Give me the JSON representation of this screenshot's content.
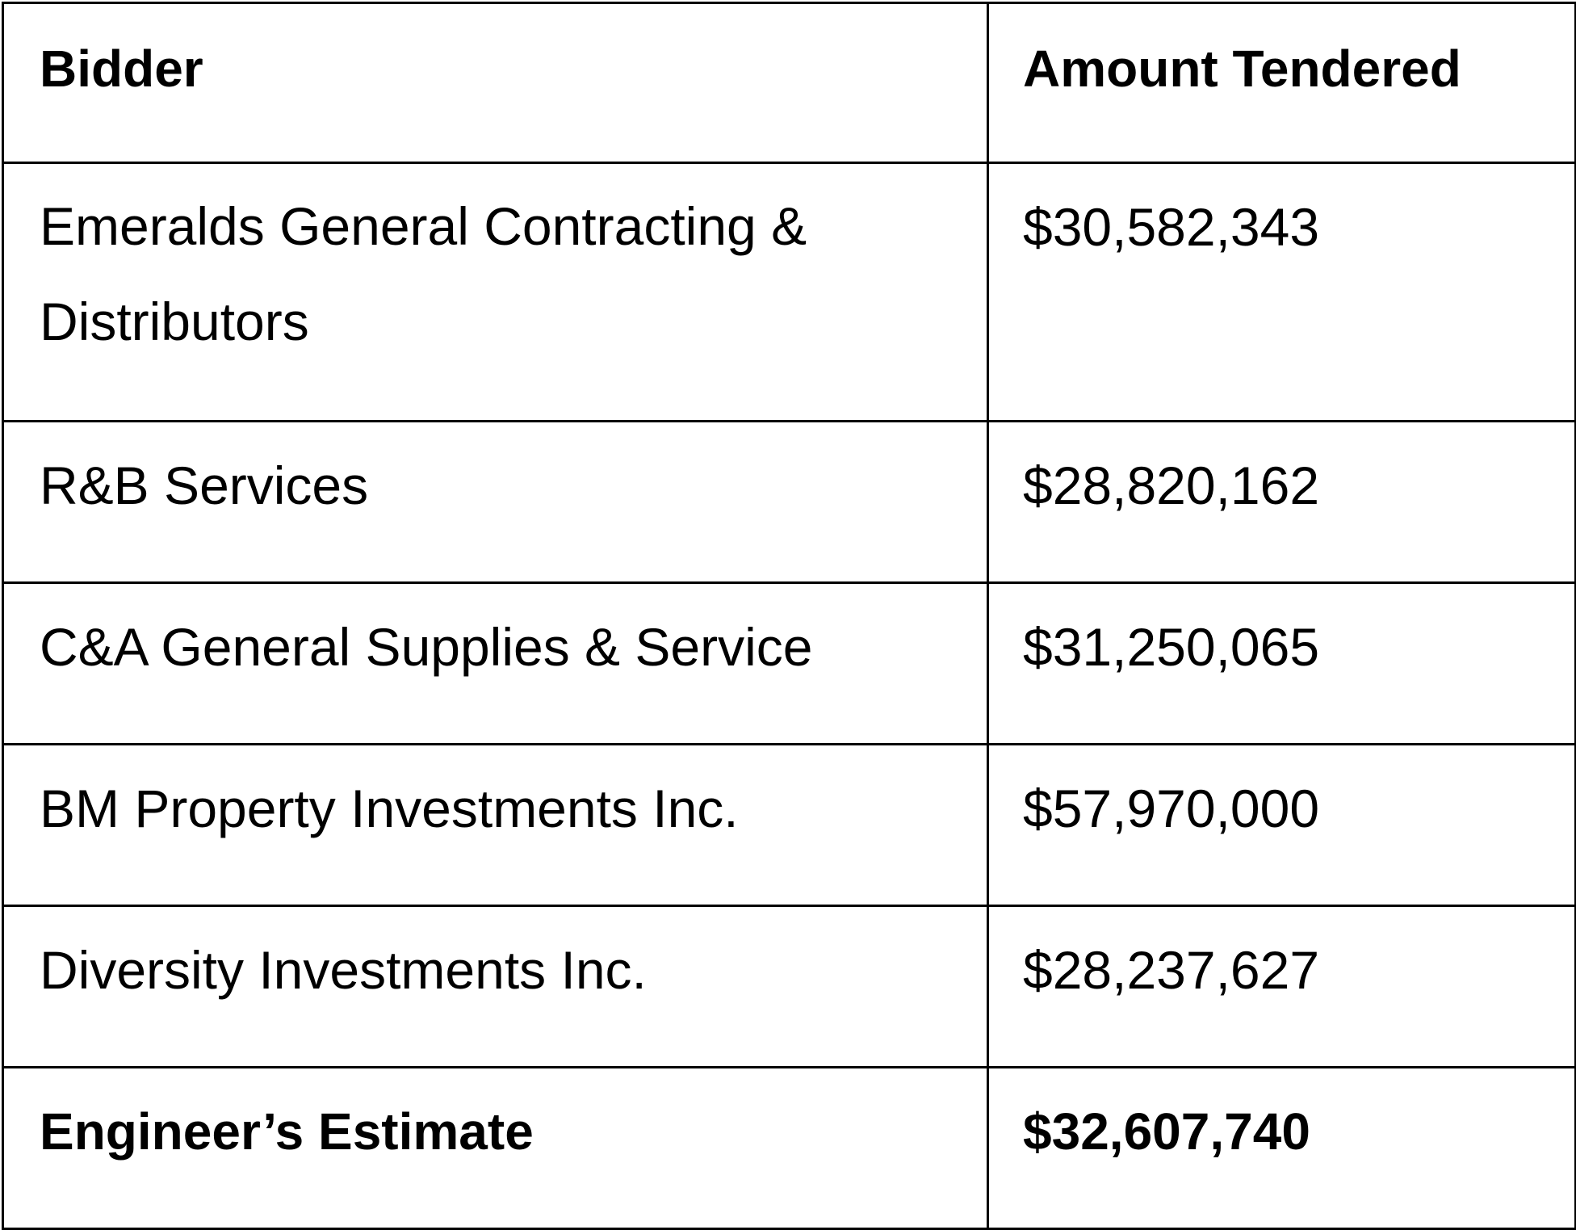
{
  "table": {
    "headers": {
      "bidder": "Bidder",
      "amount": "Amount Tendered"
    },
    "rows": [
      {
        "bidder": "Emeralds General Contracting & Distributors",
        "amount": "$30,582,343"
      },
      {
        "bidder": "R&B Services",
        "amount": "$28,820,162"
      },
      {
        "bidder": "C&A General Supplies & Service",
        "amount": "$31,250,065"
      },
      {
        "bidder": "BM Property Investments Inc.",
        "amount": "$57,970,000"
      },
      {
        "bidder": "Diversity Investments Inc.",
        "amount": "$28,237,627"
      }
    ],
    "total": {
      "bidder": "Engineer’s Estimate",
      "amount": "$32,607,740"
    }
  }
}
